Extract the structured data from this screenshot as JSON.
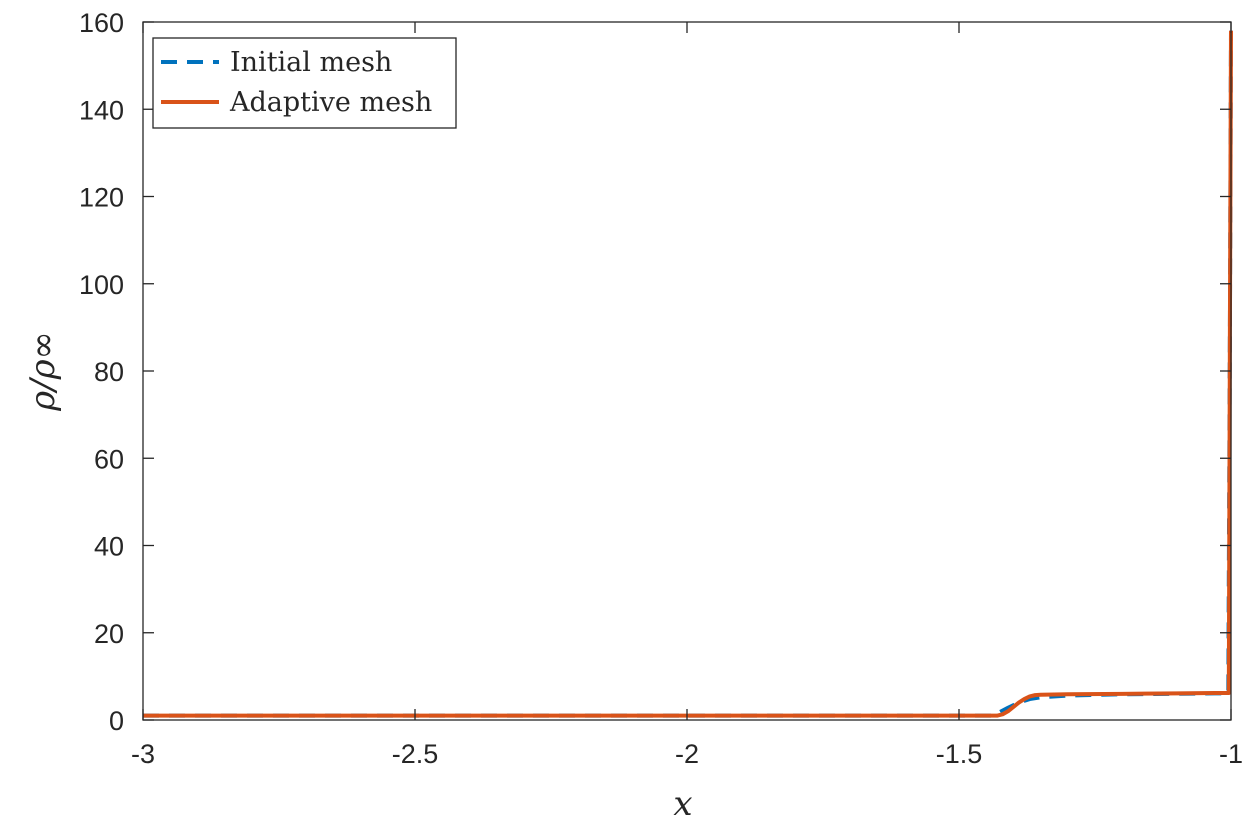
{
  "chart_data": {
    "type": "line",
    "title": "",
    "xlabel": "x",
    "ylabel": "ρ/ρ∞",
    "xlim": [
      -3,
      -1
    ],
    "ylim": [
      0,
      160
    ],
    "xticks": [
      -3,
      -2.5,
      -2,
      -1.5,
      -1
    ],
    "xtick_labels": [
      "-3",
      "-2.5",
      "-2",
      "-1.5",
      "-1"
    ],
    "yticks": [
      0,
      20,
      40,
      60,
      80,
      100,
      120,
      140,
      160
    ],
    "ytick_labels": [
      "0",
      "20",
      "40",
      "60",
      "80",
      "100",
      "120",
      "140",
      "160"
    ],
    "grid": false,
    "legend_position": "top-left",
    "series": [
      {
        "name": "Initial mesh",
        "color": "#0072BD",
        "style": "dashed",
        "x": [
          -3,
          -2.5,
          -2,
          -1.5,
          -1.44,
          -1.43,
          -1.41,
          -1.39,
          -1.37,
          -1.35,
          -1.3,
          -1.2,
          -1.1,
          -1.03,
          -1.005,
          -1.002,
          -1.0
        ],
        "y": [
          1.0,
          1.0,
          1.0,
          1.0,
          1.0,
          1.5,
          2.8,
          4.0,
          4.8,
          5.2,
          5.6,
          5.9,
          6.0,
          6.1,
          6.1,
          90,
          158
        ]
      },
      {
        "name": "Adaptive mesh",
        "color": "#D95319",
        "style": "solid",
        "x": [
          -3,
          -2.5,
          -2,
          -1.5,
          -1.43,
          -1.42,
          -1.41,
          -1.4,
          -1.39,
          -1.38,
          -1.37,
          -1.36,
          -1.35,
          -1.3,
          -1.2,
          -1.1,
          -1.03,
          -1.004,
          -1.002,
          -1.0
        ],
        "y": [
          1.0,
          1.0,
          1.0,
          1.0,
          1.0,
          1.3,
          2.0,
          3.0,
          4.0,
          4.8,
          5.4,
          5.7,
          5.8,
          5.9,
          6.0,
          6.1,
          6.2,
          6.2,
          90,
          158
        ]
      }
    ]
  }
}
